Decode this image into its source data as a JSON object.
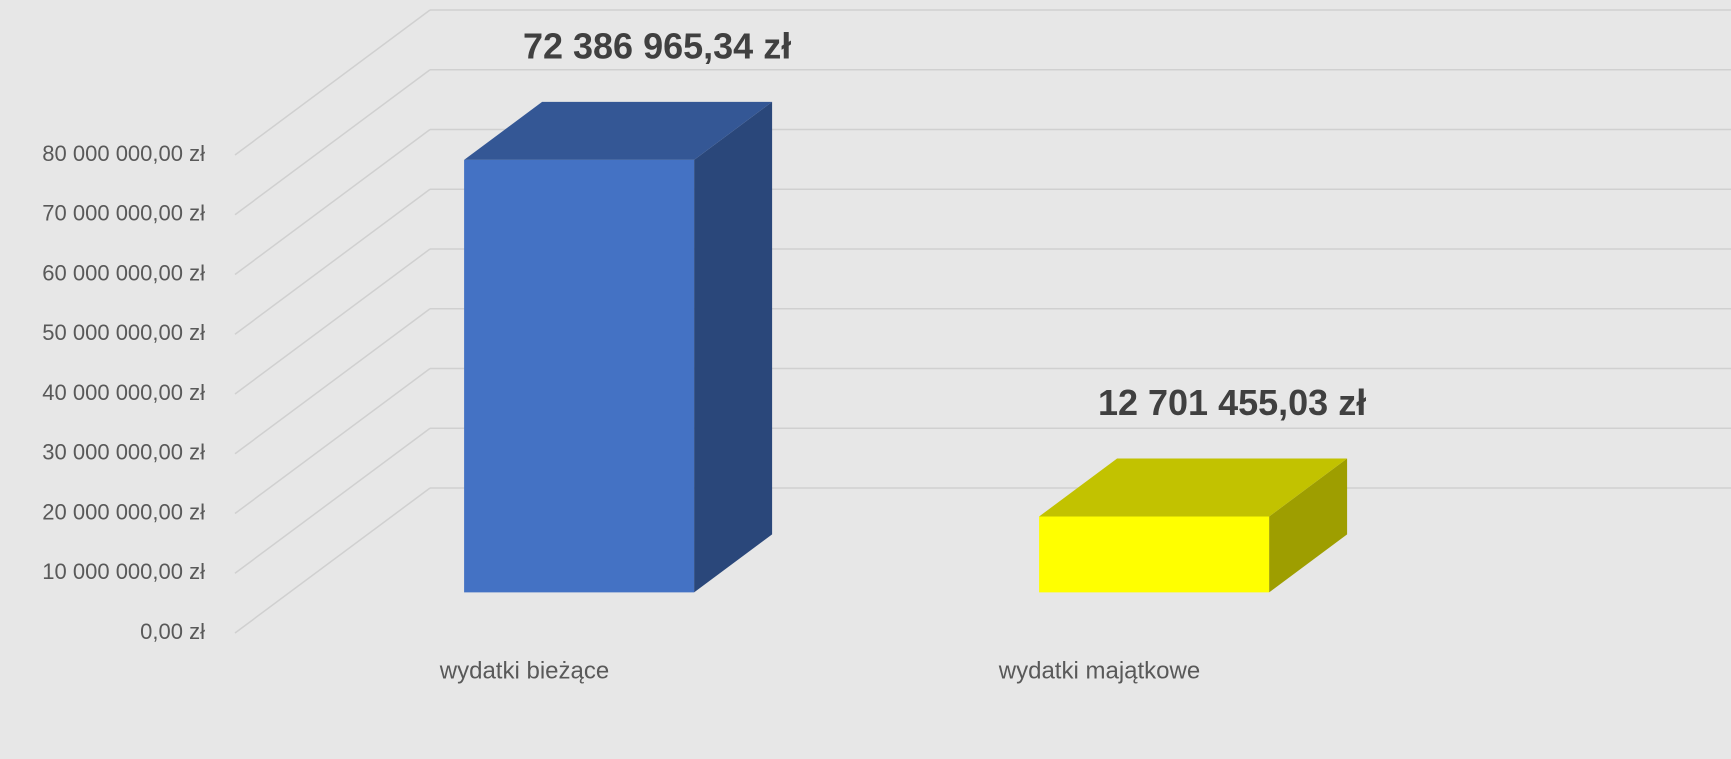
{
  "chart_data": {
    "type": "bar3d",
    "categories": [
      "wydatki bieżące",
      "wydatki majątkowe"
    ],
    "values": [
      72386965.34,
      12701455.03
    ],
    "value_labels": [
      "72 386 965,34 zł",
      "12 701 455,03 zł"
    ],
    "colors": [
      "#4472c4",
      "#ffff00"
    ],
    "ylim": [
      0,
      80000000
    ],
    "yticks": [
      {
        "value": 0,
        "label": "0,00 zł"
      },
      {
        "value": 10000000,
        "label": "10 000 000,00 zł"
      },
      {
        "value": 20000000,
        "label": "20 000 000,00 zł"
      },
      {
        "value": 30000000,
        "label": "30 000 000,00 zł"
      },
      {
        "value": 40000000,
        "label": "40 000 000,00 zł"
      },
      {
        "value": 50000000,
        "label": "50 000 000,00 zł"
      },
      {
        "value": 60000000,
        "label": "60 000 000,00 zł"
      },
      {
        "value": 70000000,
        "label": "70 000 000,00 zł"
      },
      {
        "value": 80000000,
        "label": "80 000 000,00 zł"
      }
    ],
    "grid": true
  }
}
